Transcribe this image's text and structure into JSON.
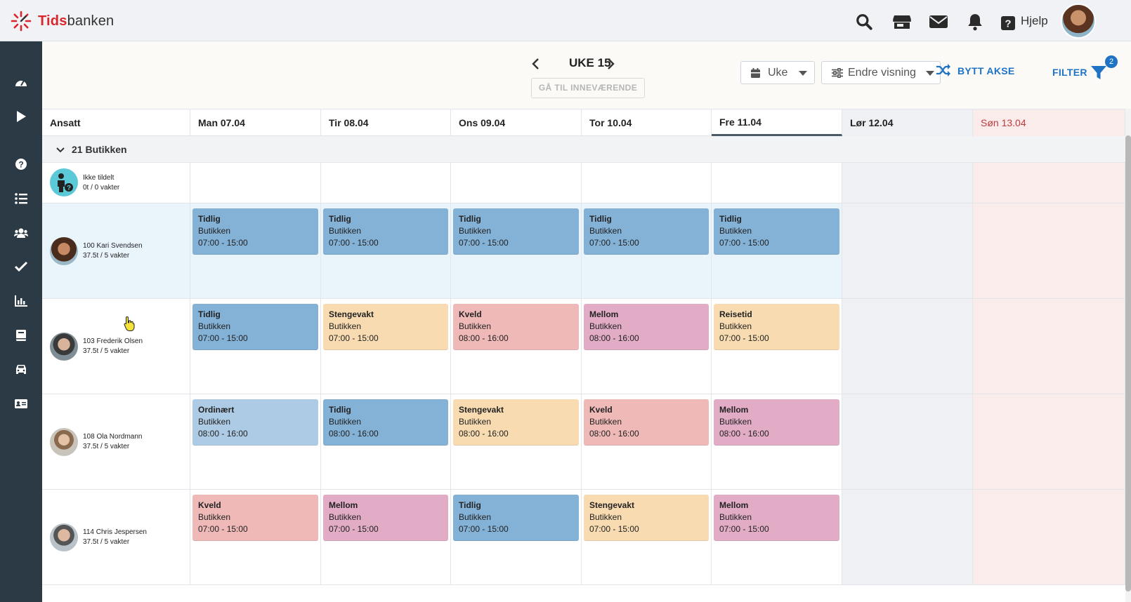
{
  "app": {
    "logo_text_a": "Tids",
    "logo_text_b": "banken"
  },
  "topbar": {
    "icons": [
      "search-icon",
      "store-icon",
      "mail-icon",
      "bell-icon",
      "help-icon"
    ],
    "help_label": "Hjelp"
  },
  "sidebar": {
    "icons": [
      "dashboard-icon",
      "play-icon",
      "question-icon",
      "list-icon",
      "users-icon",
      "check-icon",
      "chart-icon",
      "book-icon",
      "car-icon",
      "id-card-icon"
    ]
  },
  "toolbar": {
    "week_label": "UKE 15",
    "goto_current": "GÅ TIL INNEVÆRENDE",
    "view_select": "Uke",
    "change_view": "Endre visning",
    "swap_axis": "BYTT AKSE",
    "filter": "FILTER",
    "filter_count": "2"
  },
  "grid": {
    "employee_header": "Ansatt",
    "days": [
      {
        "label": "Man 07.04",
        "type": "weekday"
      },
      {
        "label": "Tir 08.04",
        "type": "weekday"
      },
      {
        "label": "Ons 09.04",
        "type": "weekday"
      },
      {
        "label": "Tor 10.04",
        "type": "weekday"
      },
      {
        "label": "Fre 11.04",
        "type": "today"
      },
      {
        "label": "Lør 12.04",
        "type": "saturday"
      },
      {
        "label": "Søn 13.04",
        "type": "sunday"
      }
    ],
    "group_label": "21 Butikken",
    "unassigned": {
      "name": "Ikke tildelt",
      "stats": "0t / 0 vakter"
    },
    "employees": [
      {
        "name": "100 Kari Svendsen",
        "stats": "37.5t / 5 vakter",
        "shifts": [
          {
            "type": "Tidlig",
            "place": "Butikken",
            "time": "07:00 - 15:00",
            "color": "#84b1d6"
          },
          {
            "type": "Tidlig",
            "place": "Butikken",
            "time": "07:00 - 15:00",
            "color": "#84b1d6"
          },
          {
            "type": "Tidlig",
            "place": "Butikken",
            "time": "07:00 - 15:00",
            "color": "#84b1d6"
          },
          {
            "type": "Tidlig",
            "place": "Butikken",
            "time": "07:00 - 15:00",
            "color": "#84b1d6"
          },
          {
            "type": "Tidlig",
            "place": "Butikken",
            "time": "07:00 - 15:00",
            "color": "#84b1d6"
          }
        ]
      },
      {
        "name": "103 Frederik Olsen",
        "stats": "37.5t / 5 vakter",
        "shifts": [
          {
            "type": "Tidlig",
            "place": "Butikken",
            "time": "07:00 - 15:00",
            "color": "#84b1d6"
          },
          {
            "type": "Stengevakt",
            "place": "Butikken",
            "time": "07:00 - 15:00",
            "color": "#f8dbb0"
          },
          {
            "type": "Kveld",
            "place": "Butikken",
            "time": "08:00 - 16:00",
            "color": "#efb9b8"
          },
          {
            "type": "Mellom",
            "place": "Butikken",
            "time": "08:00 - 16:00",
            "color": "#e2acc6"
          },
          {
            "type": "Reisetid",
            "place": "Butikken",
            "time": "07:00 - 15:00",
            "color": "#f8dbb0"
          }
        ]
      },
      {
        "name": "108 Ola Nordmann",
        "stats": "37.5t / 5 vakter",
        "shifts": [
          {
            "type": "Ordinært",
            "place": "Butikken",
            "time": "08:00 - 16:00",
            "color": "#aecbe5"
          },
          {
            "type": "Tidlig",
            "place": "Butikken",
            "time": "08:00 - 16:00",
            "color": "#84b1d6"
          },
          {
            "type": "Stengevakt",
            "place": "Butikken",
            "time": "08:00 - 16:00",
            "color": "#f8dbb0"
          },
          {
            "type": "Kveld",
            "place": "Butikken",
            "time": "08:00 - 16:00",
            "color": "#efb9b8"
          },
          {
            "type": "Mellom",
            "place": "Butikken",
            "time": "08:00 - 16:00",
            "color": "#e2acc6"
          }
        ]
      },
      {
        "name": "114 Chris Jespersen",
        "stats": "37.5t / 5 vakter",
        "shifts": [
          {
            "type": "Kveld",
            "place": "Butikken",
            "time": "07:00 - 15:00",
            "color": "#efb9b8"
          },
          {
            "type": "Mellom",
            "place": "Butikken",
            "time": "07:00 - 15:00",
            "color": "#e2acc6"
          },
          {
            "type": "Tidlig",
            "place": "Butikken",
            "time": "07:00 - 15:00",
            "color": "#84b1d6"
          },
          {
            "type": "Stengevakt",
            "place": "Butikken",
            "time": "07:00 - 15:00",
            "color": "#f8dbb0"
          },
          {
            "type": "Mellom",
            "place": "Butikken",
            "time": "07:00 - 15:00",
            "color": "#e2acc6"
          }
        ]
      }
    ]
  },
  "colors": {
    "accent": "#1f73c5",
    "sidebar": "#2b3a44",
    "saturday_bg": "#eef0f3",
    "sunday_bg": "#fbecec",
    "sunday_text": "#c0393b",
    "highlight_row": "#eaf4fb"
  }
}
